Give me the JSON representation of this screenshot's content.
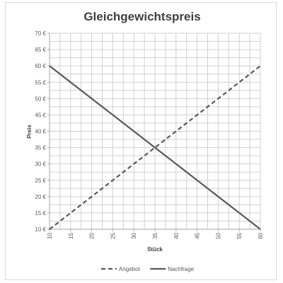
{
  "chart_data": {
    "type": "line",
    "title": "Gleichgewichtspreis",
    "xlabel": "Stück",
    "ylabel": "Preis",
    "x": [
      10,
      15,
      20,
      25,
      30,
      35,
      40,
      45,
      50,
      55,
      60
    ],
    "x_tick_labels": [
      "10",
      "15",
      "20",
      "25",
      "30",
      "35",
      "40",
      "45",
      "50",
      "55",
      "60"
    ],
    "y_tick_labels": [
      "10 €",
      "15 €",
      "20 €",
      "25 €",
      "30 €",
      "35 €",
      "40 €",
      "45 €",
      "50 €",
      "55 €",
      "60 €",
      "65 €",
      "70 €"
    ],
    "y_ticks": [
      10,
      15,
      20,
      25,
      30,
      35,
      40,
      45,
      50,
      55,
      60,
      65,
      70
    ],
    "xlim": [
      10,
      60
    ],
    "ylim": [
      10,
      70
    ],
    "grid": true,
    "legend_position": "bottom",
    "series": [
      {
        "name": "Angebot",
        "style": "dashed",
        "color": "#595959",
        "values": [
          10,
          15,
          20,
          25,
          30,
          35,
          40,
          45,
          50,
          55,
          60
        ]
      },
      {
        "name": "Nachfrage",
        "style": "solid",
        "color": "#595959",
        "values": [
          60,
          55,
          50,
          45,
          40,
          35,
          30,
          25,
          20,
          15,
          10
        ]
      }
    ]
  }
}
